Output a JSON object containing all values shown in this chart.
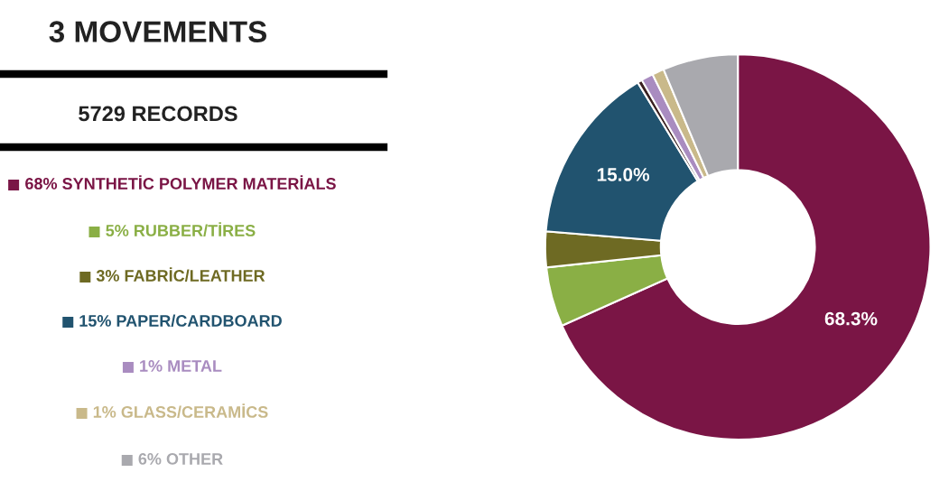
{
  "chart_data": {
    "type": "donut",
    "title": "3 MOVEMENTS",
    "subtitle": "5729 RECORDS",
    "categories": [
      "68% SYNTHETİC POLYMER MATERİALS",
      "5% RUBBER/TİRES",
      "3% FABRİC/LEATHER",
      "15% PAPER/CARDBOARD",
      null,
      "1% METAL",
      "1% GLASS/CERAMİCS",
      "6% OTHER"
    ],
    "values": [
      68.3,
      5,
      3,
      15,
      0.4,
      1,
      1,
      6.3
    ],
    "colors": [
      "#7a1545",
      "#8aaf45",
      "#6e6a23",
      "#21536f",
      "#3a2020",
      "#a98cc0",
      "#c9b98a",
      "#a9a9ae"
    ],
    "value_labels": [
      "68.3%",
      null,
      null,
      "15.0%",
      null,
      null,
      null,
      null
    ],
    "legend": "left"
  }
}
